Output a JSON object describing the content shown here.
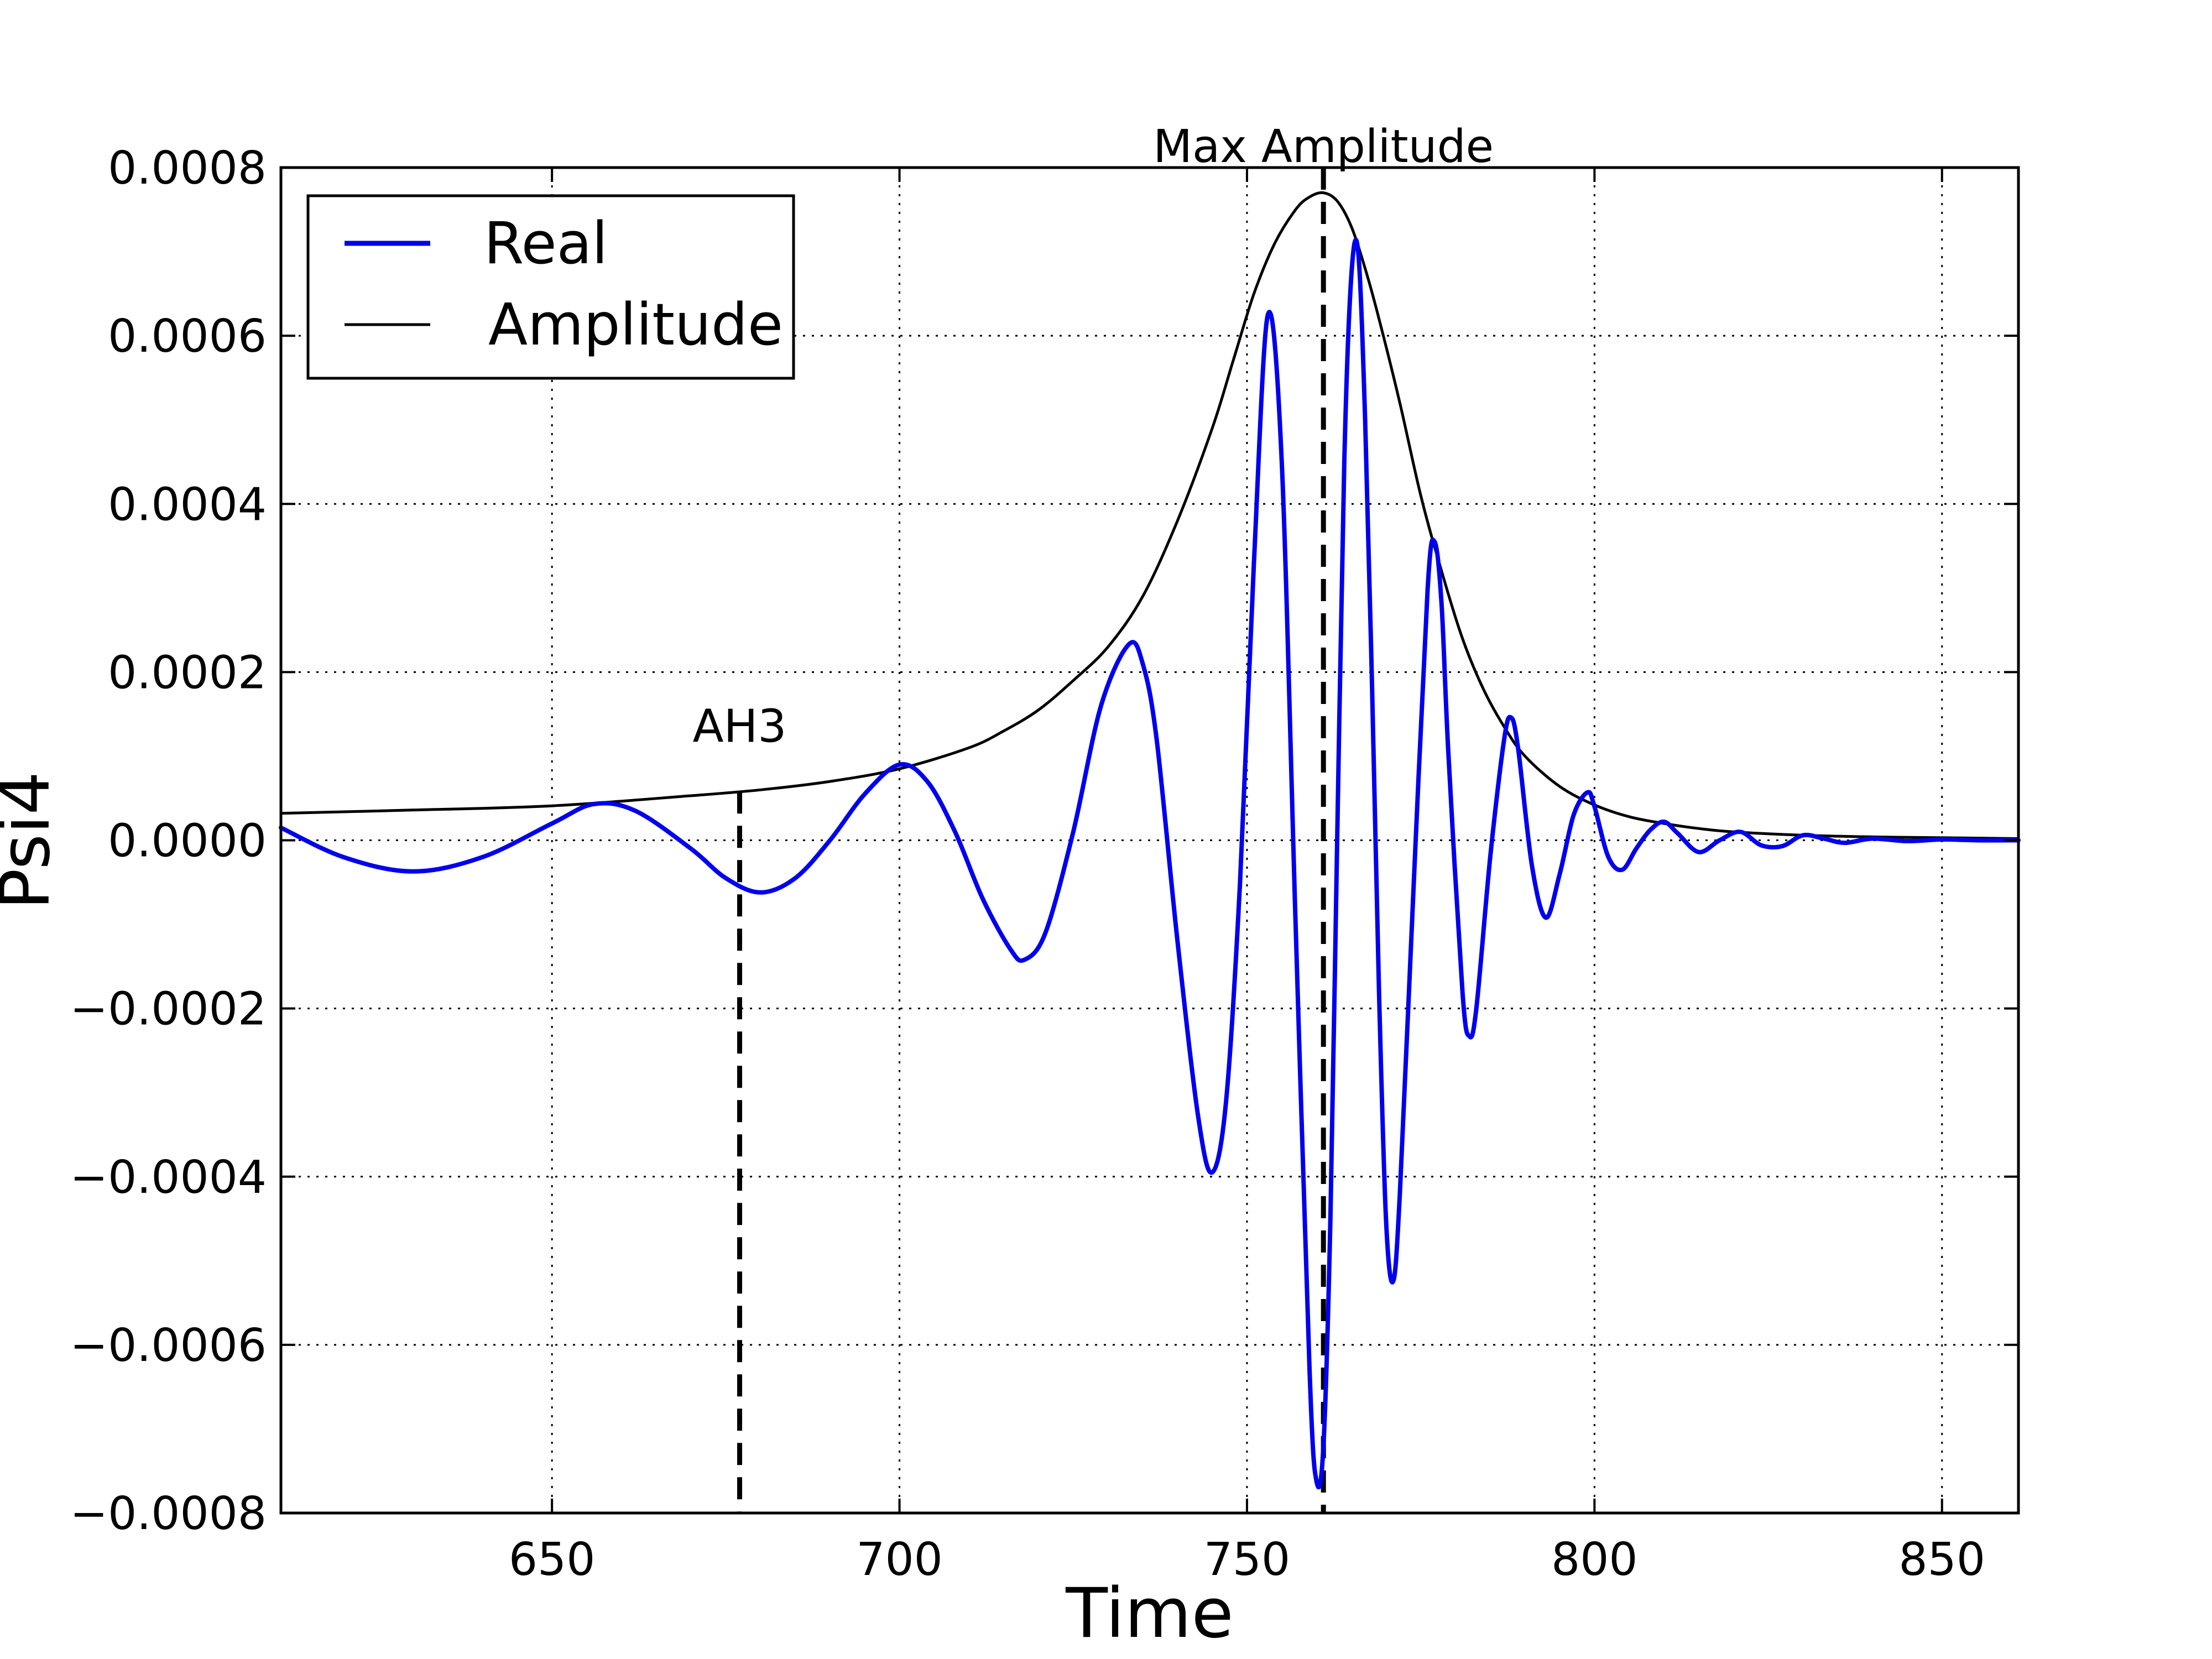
{
  "chart_data": {
    "type": "line",
    "title": "",
    "xlabel": "Time",
    "ylabel": "Psi4",
    "xlim": [
      611,
      861
    ],
    "ylim": [
      -0.0008,
      0.0008
    ],
    "x_ticks": [
      650,
      700,
      750,
      800,
      850
    ],
    "x_tick_labels": [
      "650",
      "700",
      "750",
      "800",
      "850"
    ],
    "y_ticks": [
      -0.0008,
      -0.0006,
      -0.0004,
      -0.0002,
      0.0,
      0.0002,
      0.0004,
      0.0006,
      0.0008
    ],
    "y_tick_labels": [
      "−0.0008",
      "−0.0006",
      "−0.0004",
      "−0.0002",
      "0.0000",
      "0.0002",
      "0.0004",
      "0.0006",
      "0.0008"
    ],
    "grid": true,
    "legend_position": "top-left",
    "series": [
      {
        "name": "Real",
        "color": "#0000ee",
        "x": [
          611,
          620,
          630,
          640,
          650,
          656,
          662,
          670,
          675,
          680,
          685,
          690,
          695,
          700,
          704,
          708,
          712,
          716,
          718,
          721,
          725,
          729,
          733,
          735,
          737,
          740,
          743,
          745,
          747,
          749,
          751,
          753,
          755,
          757,
          759,
          760,
          761,
          762,
          763,
          764,
          765,
          766,
          767,
          768,
          769,
          770,
          771,
          772,
          774,
          776,
          777,
          778,
          779,
          781,
          782,
          783,
          785,
          787,
          788,
          789,
          791,
          793,
          795,
          797,
          799,
          800,
          802,
          804,
          806,
          808,
          810,
          812,
          815,
          818,
          821,
          824,
          827,
          830,
          833,
          836,
          840,
          845,
          850,
          855,
          861
        ],
        "y": [
          1.5e-05,
          -2e-05,
          -3.7e-05,
          -2e-05,
          2e-05,
          4.3e-05,
          3.5e-05,
          -1e-05,
          -4.5e-05,
          -6.2e-05,
          -4.5e-05,
          0.0,
          5.5e-05,
          9e-05,
          7e-05,
          1e-05,
          -7e-05,
          -0.00013,
          -0.000142,
          -0.00011,
          1e-05,
          0.00016,
          0.000233,
          0.00021,
          0.00012,
          -0.00012,
          -0.00033,
          -0.000395,
          -0.00031,
          -5e-05,
          0.00033,
          0.000625,
          0.00045,
          -0.0001,
          -0.00063,
          -0.000762,
          -0.00072,
          -0.00045,
          1e-05,
          0.00045,
          0.00067,
          0.0007,
          0.0005,
          0.00018,
          -0.00018,
          -0.00045,
          -0.000525,
          -0.00042,
          -5e-05,
          0.0003,
          0.000355,
          0.00028,
          0.0001,
          -0.00018,
          -0.000233,
          -0.0002,
          -2e-05,
          0.00012,
          0.000146,
          0.00011,
          -3e-05,
          -9.2e-05,
          -4e-05,
          3e-05,
          5.7e-05,
          4e-05,
          -2e-05,
          -3.5e-05,
          -1e-05,
          1.2e-05,
          2.2e-05,
          8e-06,
          -1.4e-05,
          0.0,
          1e-05,
          -6e-06,
          -7e-06,
          6e-06,
          2e-06,
          -3e-06,
          2e-06,
          -1e-06,
          1e-06,
          0.0,
          0.0
        ]
      },
      {
        "name": "Amplitude",
        "color": "#000000",
        "x": [
          611,
          630,
          650,
          670,
          680,
          690,
          700,
          710,
          715,
          720,
          725,
          730,
          735,
          740,
          745,
          748,
          751,
          754,
          757,
          759,
          761,
          763,
          765,
          767,
          769,
          772,
          775,
          778,
          781,
          784,
          787,
          790,
          795,
          800,
          805,
          810,
          815,
          820,
          830,
          840,
          850,
          861
        ],
        "y": [
          3.2e-05,
          3.6e-05,
          4.1e-05,
          5.3e-05,
          6e-05,
          7e-05,
          8.5e-05,
          0.00011,
          0.00013,
          0.000155,
          0.00019,
          0.00023,
          0.00029,
          0.00038,
          0.00049,
          0.00057,
          0.00065,
          0.00071,
          0.00075,
          0.000765,
          0.00077,
          0.00076,
          0.00073,
          0.00068,
          0.00062,
          0.00052,
          0.00041,
          0.00032,
          0.00024,
          0.00018,
          0.000135,
          0.0001,
          6.4e-05,
          4.2e-05,
          2.8e-05,
          2e-05,
          1.4e-05,
          1e-05,
          6e-06,
          4e-06,
          3e-06,
          2e-06
        ]
      }
    ],
    "annotations": [
      {
        "label": "AH3",
        "x": 677,
        "line_style": "dashed",
        "line_top_y": 5.8e-05
      },
      {
        "label": "Max Amplitude",
        "x": 761,
        "line_style": "dashed",
        "line_top_y": 0.0008
      }
    ]
  }
}
